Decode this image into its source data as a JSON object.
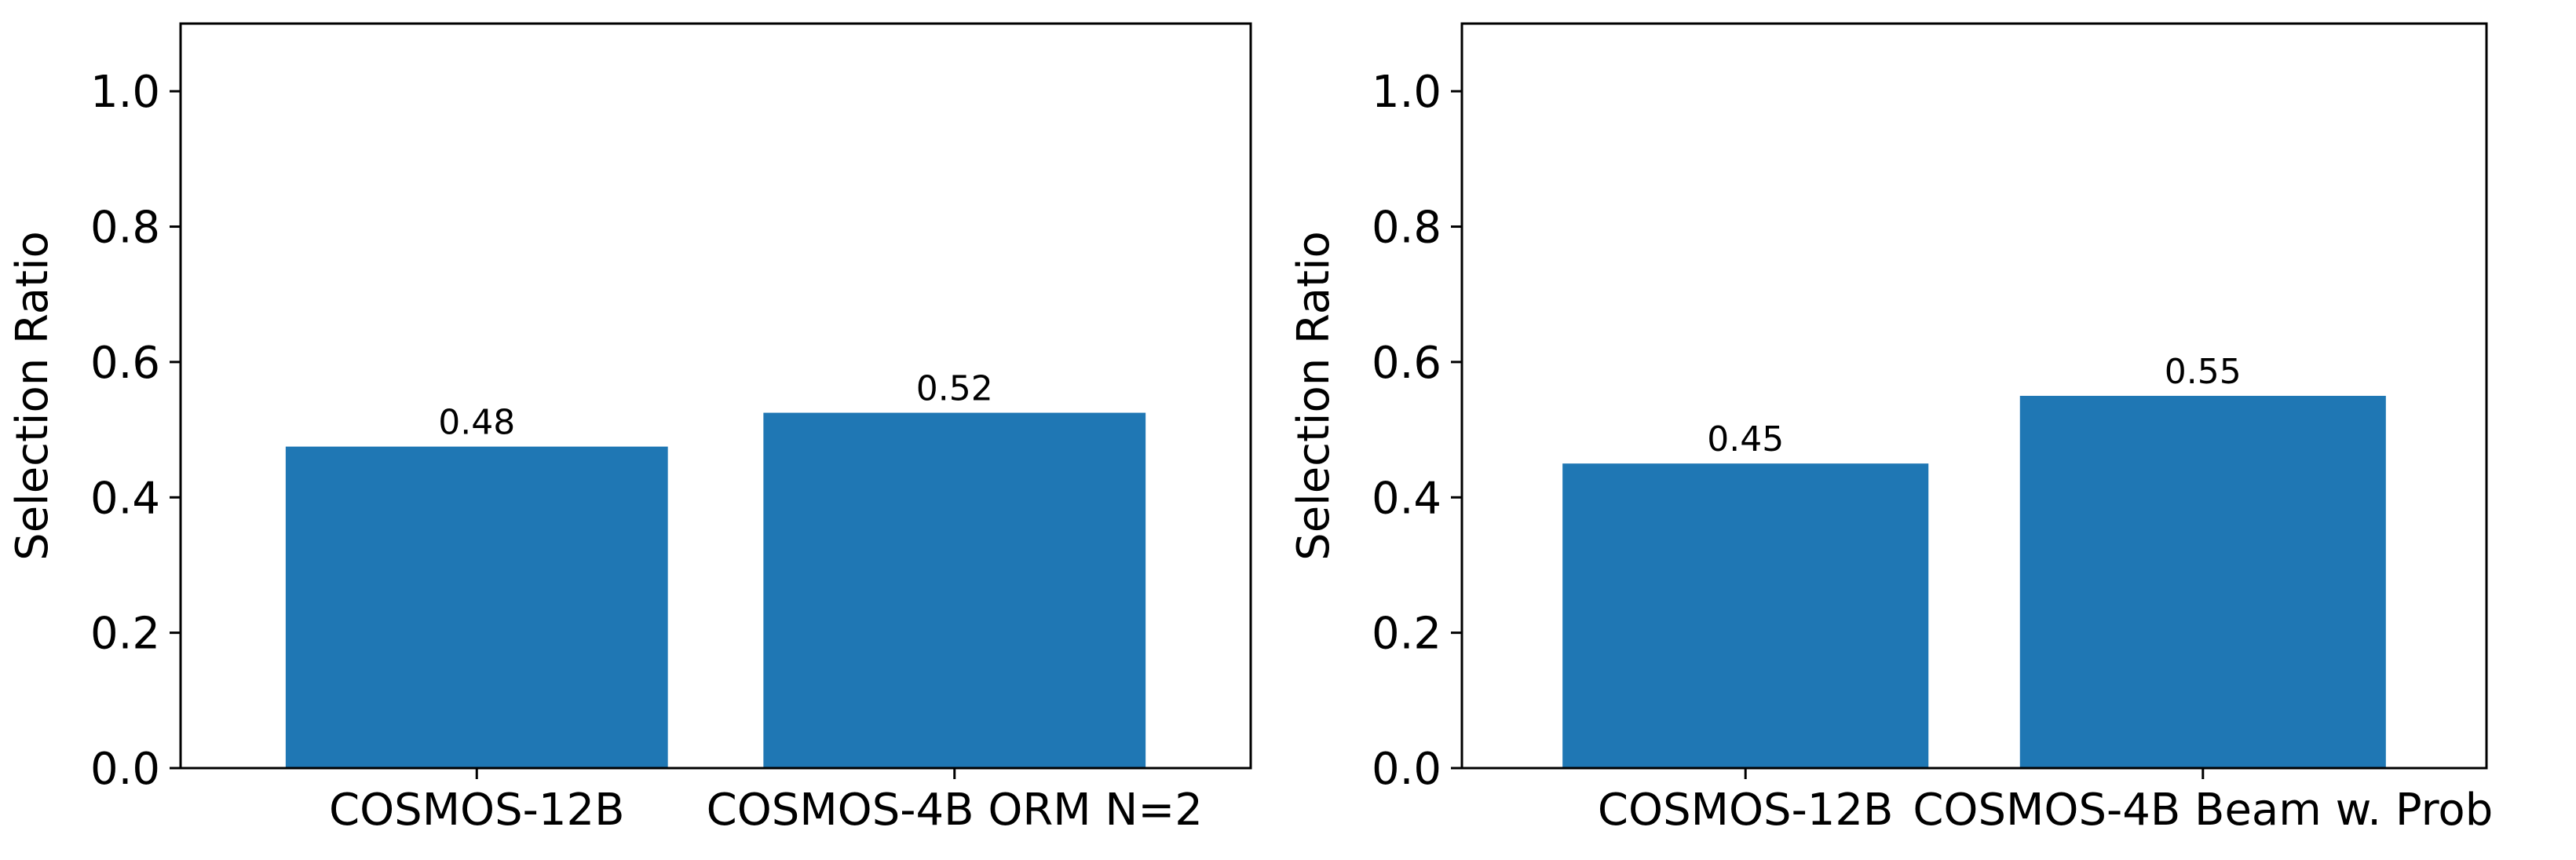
{
  "chart_data": [
    {
      "type": "bar",
      "categories": [
        "COSMOS-12B",
        "COSMOS-4B ORM N=2"
      ],
      "values": [
        0.475,
        0.525
      ],
      "data_labels": [
        "0.48",
        "0.52"
      ],
      "xlabel": "",
      "ylabel": "Selection Ratio",
      "ylim": [
        0,
        1.1
      ],
      "yticks": [
        0.0,
        0.2,
        0.4,
        0.6,
        0.8,
        1.0
      ],
      "ytick_labels": [
        "0.0",
        "0.2",
        "0.4",
        "0.6",
        "0.8",
        "1.0"
      ],
      "grid": false,
      "color": "#1f77b4"
    },
    {
      "type": "bar",
      "categories": [
        "COSMOS-12B",
        "COSMOS-4B Beam w. Prob"
      ],
      "values": [
        0.45,
        0.55
      ],
      "data_labels": [
        "0.45",
        "0.55"
      ],
      "xlabel": "",
      "ylabel": "Selection Ratio",
      "ylim": [
        0,
        1.1
      ],
      "yticks": [
        0.0,
        0.2,
        0.4,
        0.6,
        0.8,
        1.0
      ],
      "ytick_labels": [
        "0.0",
        "0.2",
        "0.4",
        "0.6",
        "0.8",
        "1.0"
      ],
      "grid": false,
      "color": "#1f77b4"
    }
  ]
}
